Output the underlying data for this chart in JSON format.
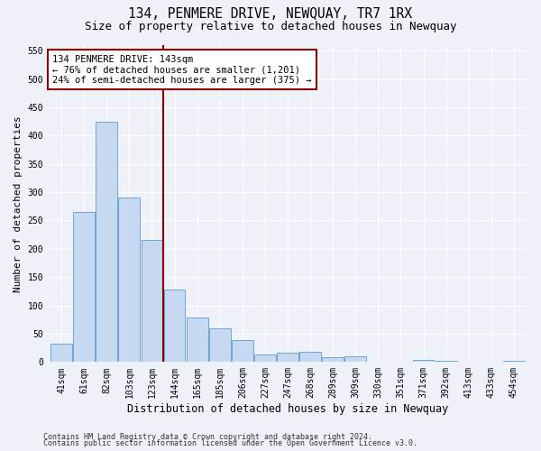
{
  "title": "134, PENMERE DRIVE, NEWQUAY, TR7 1RX",
  "subtitle": "Size of property relative to detached houses in Newquay",
  "xlabel": "Distribution of detached houses by size in Newquay",
  "ylabel": "Number of detached properties",
  "categories": [
    "41sqm",
    "61sqm",
    "82sqm",
    "103sqm",
    "123sqm",
    "144sqm",
    "165sqm",
    "185sqm",
    "206sqm",
    "227sqm",
    "247sqm",
    "268sqm",
    "289sqm",
    "309sqm",
    "330sqm",
    "351sqm",
    "371sqm",
    "392sqm",
    "413sqm",
    "433sqm",
    "454sqm"
  ],
  "values": [
    32,
    265,
    425,
    290,
    215,
    128,
    78,
    60,
    38,
    13,
    17,
    18,
    8,
    10,
    0,
    0,
    4,
    2,
    0,
    0,
    2
  ],
  "bar_color": "#c6d9f0",
  "bar_edge_color": "#5b9bd5",
  "vline_x_index": 5,
  "vline_color": "#8b0000",
  "annotation_line1": "134 PENMERE DRIVE: 143sqm",
  "annotation_line2": "← 76% of detached houses are smaller (1,201)",
  "annotation_line3": "24% of semi-detached houses are larger (375) →",
  "annotation_box_color": "#ffffff",
  "annotation_box_edge_color": "#8b0000",
  "ylim": [
    0,
    560
  ],
  "yticks": [
    0,
    50,
    100,
    150,
    200,
    250,
    300,
    350,
    400,
    450,
    500,
    550
  ],
  "footer_line1": "Contains HM Land Registry data © Crown copyright and database right 2024.",
  "footer_line2": "Contains public sector information licensed under the Open Government Licence v3.0.",
  "background_color": "#eef2f8",
  "grid_color": "#ffffff",
  "title_fontsize": 10.5,
  "subtitle_fontsize": 9,
  "ylabel_fontsize": 8,
  "xlabel_fontsize": 8.5,
  "tick_fontsize": 7,
  "annotation_fontsize": 7.5,
  "footer_fontsize": 6
}
